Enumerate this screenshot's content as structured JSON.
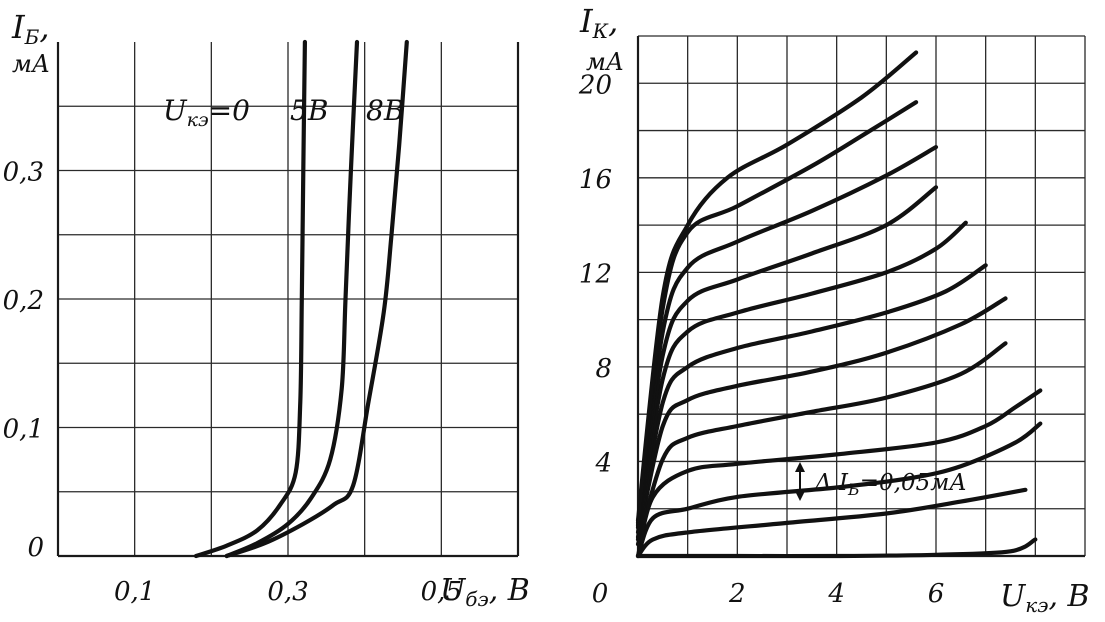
{
  "chart_data": [
    {
      "type": "line",
      "ylabel": "I",
      "ylabel_sub": "Б",
      "ylabel_comma": ",",
      "yunit": "мА",
      "xlabel": "U",
      "xlabel_sub": "бэ",
      "xlabel_unit": ", В",
      "xlim": [
        0,
        0.6
      ],
      "ylim": [
        0,
        0.4
      ],
      "x_ticks": [
        {
          "value": 0.1,
          "label": "0,1"
        },
        {
          "value": 0.3,
          "label": "0,3"
        },
        {
          "value": 0.5,
          "label": "0,5"
        }
      ],
      "y_ticks": [
        {
          "value": 0,
          "label": "0"
        },
        {
          "value": 0.1,
          "label": "0,1"
        },
        {
          "value": 0.2,
          "label": "0,2"
        },
        {
          "value": 0.3,
          "label": "0,3"
        }
      ],
      "grid": true,
      "legend": {
        "prefix": "U",
        "prefix_sub": "кэ",
        "eq": "=",
        "labels": [
          "0",
          "5В",
          "8В"
        ]
      },
      "series": [
        {
          "name": "0",
          "points": [
            [
              0.18,
              0
            ],
            [
              0.22,
              0.008
            ],
            [
              0.26,
              0.02
            ],
            [
              0.29,
              0.04
            ],
            [
              0.31,
              0.065
            ],
            [
              0.316,
              0.12
            ],
            [
              0.318,
              0.2
            ],
            [
              0.32,
              0.3
            ],
            [
              0.322,
              0.4
            ]
          ]
        },
        {
          "name": "5В",
          "points": [
            [
              0.22,
              0
            ],
            [
              0.26,
              0.01
            ],
            [
              0.3,
              0.025
            ],
            [
              0.33,
              0.045
            ],
            [
              0.355,
              0.075
            ],
            [
              0.37,
              0.13
            ],
            [
              0.375,
              0.2
            ],
            [
              0.382,
              0.3
            ],
            [
              0.39,
              0.4
            ]
          ]
        },
        {
          "name": "8В",
          "points": [
            [
              0.22,
              0
            ],
            [
              0.27,
              0.01
            ],
            [
              0.32,
              0.025
            ],
            [
              0.36,
              0.04
            ],
            [
              0.385,
              0.055
            ],
            [
              0.405,
              0.12
            ],
            [
              0.425,
              0.19
            ],
            [
              0.435,
              0.25
            ],
            [
              0.445,
              0.32
            ],
            [
              0.455,
              0.4
            ]
          ]
        }
      ]
    },
    {
      "type": "line",
      "ylabel": "I",
      "ylabel_sub": "К",
      "ylabel_comma": ",",
      "yunit": "мА",
      "xlabel": "U",
      "xlabel_sub": "кэ",
      "xlabel_unit": ", В",
      "xlim": [
        0,
        9
      ],
      "ylim": [
        0,
        22
      ],
      "x_ticks": [
        {
          "value": 0,
          "label": "0"
        },
        {
          "value": 2,
          "label": "2"
        },
        {
          "value": 4,
          "label": "4"
        },
        {
          "value": 6,
          "label": "6"
        }
      ],
      "y_ticks": [
        {
          "value": 4,
          "label": "4"
        },
        {
          "value": 8,
          "label": "8"
        },
        {
          "value": 12,
          "label": "12"
        },
        {
          "value": 16,
          "label": "16"
        },
        {
          "value": 20,
          "label": "20"
        }
      ],
      "grid": true,
      "annotation": {
        "prefix": "Δ I",
        "sub": "Б",
        "value": "=0,05мА"
      },
      "series": [
        {
          "points": [
            [
              0,
              0
            ],
            [
              2,
              0
            ],
            [
              4,
              0
            ],
            [
              6,
              0.05
            ],
            [
              7.5,
              0.2
            ],
            [
              8,
              0.7
            ]
          ]
        },
        {
          "points": [
            [
              0,
              0
            ],
            [
              0.3,
              0.7
            ],
            [
              1,
              1
            ],
            [
              3,
              1.4
            ],
            [
              5,
              1.8
            ],
            [
              6.5,
              2.3
            ],
            [
              7.8,
              2.8
            ]
          ]
        },
        {
          "points": [
            [
              0,
              0
            ],
            [
              0.3,
              1.6
            ],
            [
              1,
              2
            ],
            [
              2,
              2.5
            ],
            [
              4,
              2.9
            ],
            [
              5.5,
              3.3
            ],
            [
              6.5,
              3.8
            ],
            [
              7.6,
              4.8
            ],
            [
              8.1,
              5.6
            ]
          ]
        },
        {
          "points": [
            [
              0,
              0
            ],
            [
              0.3,
              2.5
            ],
            [
              1,
              3.6
            ],
            [
              2,
              3.9
            ],
            [
              4,
              4.3
            ],
            [
              6,
              4.8
            ],
            [
              7,
              5.5
            ],
            [
              7.6,
              6.3
            ],
            [
              8.1,
              7
            ]
          ]
        },
        {
          "points": [
            [
              0,
              0.5
            ],
            [
              0.5,
              4.1
            ],
            [
              1,
              5
            ],
            [
              2,
              5.5
            ],
            [
              3.5,
              6.1
            ],
            [
              5,
              6.7
            ],
            [
              6.5,
              7.7
            ],
            [
              7.4,
              9
            ]
          ]
        },
        {
          "points": [
            [
              0,
              0.7
            ],
            [
              0.5,
              5.5
            ],
            [
              1,
              6.6
            ],
            [
              2,
              7.2
            ],
            [
              3.5,
              7.8
            ],
            [
              5,
              8.6
            ],
            [
              6.5,
              9.8
            ],
            [
              7.4,
              10.9
            ]
          ]
        },
        {
          "points": [
            [
              0,
              0.8
            ],
            [
              0.5,
              6.5
            ],
            [
              1,
              8
            ],
            [
              2,
              8.8
            ],
            [
              3.5,
              9.5
            ],
            [
              5,
              10.3
            ],
            [
              6.2,
              11.2
            ],
            [
              7,
              12.3
            ]
          ]
        },
        {
          "points": [
            [
              0,
              1
            ],
            [
              0.5,
              7.5
            ],
            [
              1,
              9.5
            ],
            [
              2,
              10.3
            ],
            [
              3.5,
              11.1
            ],
            [
              5,
              12
            ],
            [
              6,
              13
            ],
            [
              6.6,
              14.1
            ]
          ]
        },
        {
          "points": [
            [
              0,
              1.2
            ],
            [
              0.5,
              8.5
            ],
            [
              1,
              10.8
            ],
            [
              2,
              11.7
            ],
            [
              3.5,
              12.8
            ],
            [
              5,
              14
            ],
            [
              6,
              15.6
            ]
          ]
        },
        {
          "points": [
            [
              0,
              1.3
            ],
            [
              0.5,
              9.5
            ],
            [
              1,
              12.2
            ],
            [
              2,
              13.3
            ],
            [
              3.5,
              14.6
            ],
            [
              5,
              16.1
            ],
            [
              6,
              17.3
            ]
          ]
        },
        {
          "points": [
            [
              0,
              1.4
            ],
            [
              0.5,
              10.5
            ],
            [
              1,
              13.7
            ],
            [
              2,
              14.8
            ],
            [
              3.5,
              16.5
            ],
            [
              4.6,
              17.9
            ],
            [
              5.6,
              19.2
            ]
          ]
        },
        {
          "points": [
            [
              0,
              1.5
            ],
            [
              0.5,
              11
            ],
            [
              1,
              14
            ],
            [
              1.8,
              16
            ],
            [
              3,
              17.4
            ],
            [
              4.5,
              19.4
            ],
            [
              5.6,
              21.3
            ]
          ]
        }
      ]
    }
  ]
}
